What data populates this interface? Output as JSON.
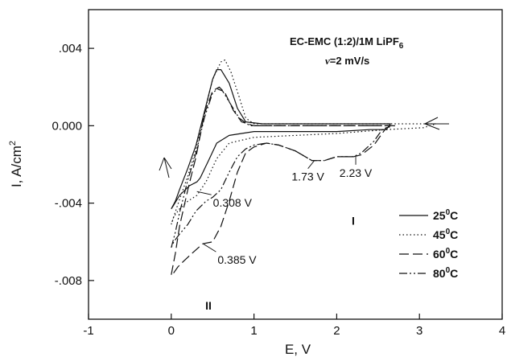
{
  "chart_data": {
    "type": "line",
    "xlabel": "E, V",
    "ylabel_main": "I, A/cm",
    "ylabel_sup": "2",
    "xlim": [
      -1,
      4
    ],
    "ylim": [
      -0.01,
      0.006
    ],
    "x_ticks": [
      -1,
      0,
      1,
      2,
      3,
      4
    ],
    "x_tick_labels": [
      "-1",
      "0",
      "1",
      "2",
      "3",
      "4"
    ],
    "y_ticks": [
      0.004,
      0.0,
      -0.004,
      -0.008
    ],
    "y_tick_labels": [
      ".004",
      "0.000",
      "-.004",
      "-.008"
    ],
    "conditions": {
      "line1": "EC-EMC (1:2)/1M LiPF",
      "line1_sub": "6",
      "line2_symbol": "ν",
      "line2_rest": "=2 mV/s"
    },
    "annotations": [
      {
        "text": "0.308 V",
        "x": 0.31,
        "y": -0.0034
      },
      {
        "text": "0.385 V",
        "x": 0.385,
        "y": -0.0061
      },
      {
        "text": "1.73 V",
        "x": 1.73,
        "y": -0.0018
      },
      {
        "text": "2.23 V",
        "x": 2.23,
        "y": -0.0016
      },
      {
        "text": "I",
        "x": 2.2,
        "y": -0.0049
      },
      {
        "text": "II",
        "x": 0.45,
        "y": -0.0093
      }
    ],
    "legend": {
      "placement": "lower-right",
      "entries": [
        {
          "base": "25",
          "sup": "0",
          "unit": "C",
          "dash": "none"
        },
        {
          "base": "45",
          "sup": "0",
          "unit": "C",
          "dash": "1.5,3"
        },
        {
          "base": "60",
          "sup": "0",
          "unit": "C",
          "dash": "12,5"
        },
        {
          "base": "80",
          "sup": "0",
          "unit": "C",
          "dash": "10,3,2,3,2,3"
        }
      ]
    },
    "series": [
      {
        "dash": "none",
        "points": [
          [
            0.0,
            -0.0043
          ],
          [
            0.05,
            -0.0039
          ],
          [
            0.1,
            -0.0033
          ],
          [
            0.2,
            -0.0022
          ],
          [
            0.3,
            -0.001
          ],
          [
            0.4,
            0.0007
          ],
          [
            0.5,
            0.0024
          ],
          [
            0.55,
            0.0029
          ],
          [
            0.6,
            0.0029
          ],
          [
            0.7,
            0.0022
          ],
          [
            0.8,
            0.0009
          ],
          [
            0.9,
            0.0002
          ],
          [
            1.1,
            0.0001
          ],
          [
            2.5,
            0.0001
          ],
          [
            2.65,
            0.0001
          ],
          [
            2.6,
            -0.0002
          ],
          [
            2.4,
            -0.0002
          ],
          [
            2.0,
            -0.0003
          ],
          [
            1.5,
            -0.0003
          ],
          [
            1.0,
            -0.0003
          ],
          [
            0.7,
            -0.0005
          ],
          [
            0.55,
            -0.0009
          ],
          [
            0.45,
            -0.0018
          ],
          [
            0.35,
            -0.0027
          ],
          [
            0.31,
            -0.0029
          ],
          [
            0.22,
            -0.0031
          ],
          [
            0.1,
            -0.0036
          ],
          [
            0.03,
            -0.0041
          ],
          [
            0.0,
            -0.0043
          ]
        ]
      },
      {
        "dash": "1.5,3",
        "points": [
          [
            0.0,
            -0.0051
          ],
          [
            0.1,
            -0.0038
          ],
          [
            0.2,
            -0.0026
          ],
          [
            0.3,
            -0.0012
          ],
          [
            0.4,
            0.0006
          ],
          [
            0.5,
            0.0024
          ],
          [
            0.6,
            0.0033
          ],
          [
            0.65,
            0.0034
          ],
          [
            0.72,
            0.0028
          ],
          [
            0.82,
            0.0015
          ],
          [
            0.9,
            0.0004
          ],
          [
            1.0,
            0.0001
          ],
          [
            2.0,
            0.0001
          ],
          [
            3.2,
            0.0001
          ],
          [
            3.05,
            -0.0001
          ],
          [
            2.6,
            -0.0002
          ],
          [
            2.0,
            -0.0004
          ],
          [
            1.5,
            -0.0005
          ],
          [
            1.0,
            -0.0006
          ],
          [
            0.7,
            -0.0009
          ],
          [
            0.55,
            -0.0017
          ],
          [
            0.42,
            -0.0029
          ],
          [
            0.31,
            -0.0036
          ],
          [
            0.2,
            -0.0039
          ],
          [
            0.1,
            -0.0043
          ],
          [
            0.03,
            -0.0047
          ],
          [
            0.0,
            -0.0051
          ]
        ]
      },
      {
        "dash": "12,5",
        "points": [
          [
            0.0,
            -0.0077
          ],
          [
            0.05,
            -0.0066
          ],
          [
            0.1,
            -0.0052
          ],
          [
            0.2,
            -0.0033
          ],
          [
            0.3,
            -0.0016
          ],
          [
            0.4,
            0.0006
          ],
          [
            0.5,
            0.0018
          ],
          [
            0.58,
            0.002
          ],
          [
            0.65,
            0.0017
          ],
          [
            0.75,
            0.0008
          ],
          [
            0.85,
            0.0002
          ],
          [
            1.0,
            0.0
          ],
          [
            1.5,
            0.0
          ],
          [
            2.5,
            0.0
          ],
          [
            2.7,
            0.0
          ],
          [
            2.6,
            -0.0001
          ],
          [
            2.55,
            -0.0004
          ],
          [
            2.45,
            -0.001
          ],
          [
            2.3,
            -0.0015
          ],
          [
            2.2,
            -0.0016
          ],
          [
            2.0,
            -0.0016
          ],
          [
            1.85,
            -0.0018
          ],
          [
            1.7,
            -0.0018
          ],
          [
            1.5,
            -0.0013
          ],
          [
            1.3,
            -0.001
          ],
          [
            1.15,
            -0.0009
          ],
          [
            1.0,
            -0.0011
          ],
          [
            0.9,
            -0.0014
          ],
          [
            0.8,
            -0.0024
          ],
          [
            0.7,
            -0.0039
          ],
          [
            0.6,
            -0.0052
          ],
          [
            0.5,
            -0.006
          ],
          [
            0.38,
            -0.0061
          ],
          [
            0.25,
            -0.0066
          ],
          [
            0.15,
            -0.007
          ],
          [
            0.08,
            -0.0073
          ],
          [
            0.03,
            -0.0076
          ],
          [
            0.0,
            -0.0077
          ]
        ]
      },
      {
        "dash": "10,3,2,3,2,3",
        "points": [
          [
            0.0,
            -0.0063
          ],
          [
            0.05,
            -0.0055
          ],
          [
            0.1,
            -0.0045
          ],
          [
            0.2,
            -0.0028
          ],
          [
            0.3,
            -0.0014
          ],
          [
            0.4,
            0.0004
          ],
          [
            0.5,
            0.0017
          ],
          [
            0.56,
            0.0019
          ],
          [
            0.62,
            0.0018
          ],
          [
            0.72,
            0.0011
          ],
          [
            0.82,
            0.0004
          ],
          [
            0.95,
            0.0
          ],
          [
            1.5,
            0.0
          ],
          [
            2.4,
            0.0
          ],
          [
            2.65,
            0.0
          ],
          [
            2.55,
            -0.0002
          ],
          [
            2.45,
            -0.0008
          ],
          [
            2.3,
            -0.0014
          ],
          [
            2.2,
            -0.0016
          ],
          [
            2.0,
            -0.0016
          ],
          [
            1.85,
            -0.0018
          ],
          [
            1.7,
            -0.0018
          ],
          [
            1.5,
            -0.0013
          ],
          [
            1.3,
            -0.001
          ],
          [
            1.15,
            -0.0009
          ],
          [
            1.0,
            -0.001
          ],
          [
            0.9,
            -0.0012
          ],
          [
            0.8,
            -0.0016
          ],
          [
            0.7,
            -0.0024
          ],
          [
            0.6,
            -0.0033
          ],
          [
            0.5,
            -0.0037
          ],
          [
            0.42,
            -0.0039
          ],
          [
            0.3,
            -0.0044
          ],
          [
            0.2,
            -0.0051
          ],
          [
            0.1,
            -0.0056
          ],
          [
            0.03,
            -0.006
          ],
          [
            0.0,
            -0.0063
          ]
        ]
      }
    ],
    "grid": false
  }
}
